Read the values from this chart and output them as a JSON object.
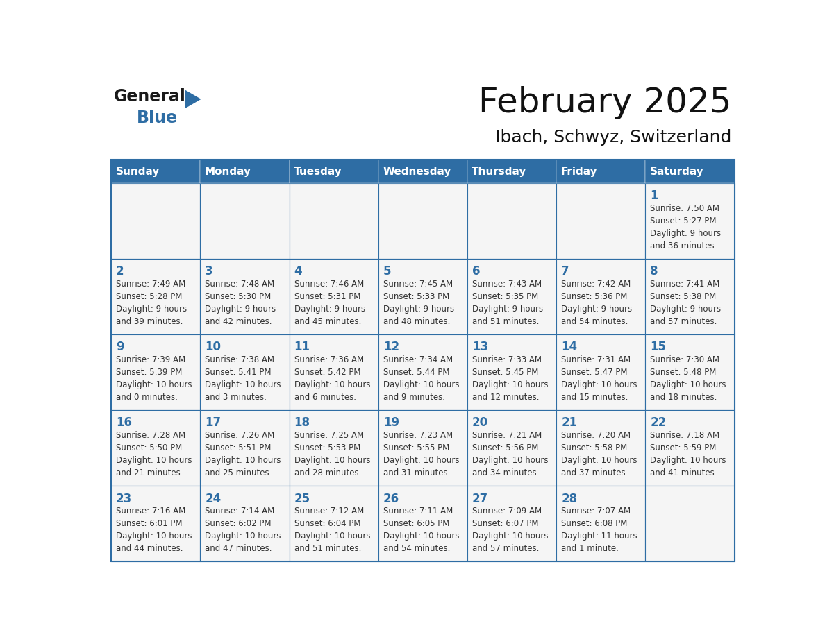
{
  "title": "February 2025",
  "subtitle": "Ibach, Schwyz, Switzerland",
  "header_bg": "#2E6DA4",
  "header_text_color": "#FFFFFF",
  "cell_bg": "#F5F5F5",
  "border_color": "#2E6DA4",
  "text_color": "#333333",
  "day_number_color": "#2E6DA4",
  "day_names": [
    "Sunday",
    "Monday",
    "Tuesday",
    "Wednesday",
    "Thursday",
    "Friday",
    "Saturday"
  ],
  "days": [
    {
      "day": 1,
      "col": 6,
      "row": 0,
      "sunrise": "7:50 AM",
      "sunset": "5:27 PM",
      "daylight_l1": "9 hours",
      "daylight_l2": "and 36 minutes."
    },
    {
      "day": 2,
      "col": 0,
      "row": 1,
      "sunrise": "7:49 AM",
      "sunset": "5:28 PM",
      "daylight_l1": "9 hours",
      "daylight_l2": "and 39 minutes."
    },
    {
      "day": 3,
      "col": 1,
      "row": 1,
      "sunrise": "7:48 AM",
      "sunset": "5:30 PM",
      "daylight_l1": "9 hours",
      "daylight_l2": "and 42 minutes."
    },
    {
      "day": 4,
      "col": 2,
      "row": 1,
      "sunrise": "7:46 AM",
      "sunset": "5:31 PM",
      "daylight_l1": "9 hours",
      "daylight_l2": "and 45 minutes."
    },
    {
      "day": 5,
      "col": 3,
      "row": 1,
      "sunrise": "7:45 AM",
      "sunset": "5:33 PM",
      "daylight_l1": "9 hours",
      "daylight_l2": "and 48 minutes."
    },
    {
      "day": 6,
      "col": 4,
      "row": 1,
      "sunrise": "7:43 AM",
      "sunset": "5:35 PM",
      "daylight_l1": "9 hours",
      "daylight_l2": "and 51 minutes."
    },
    {
      "day": 7,
      "col": 5,
      "row": 1,
      "sunrise": "7:42 AM",
      "sunset": "5:36 PM",
      "daylight_l1": "9 hours",
      "daylight_l2": "and 54 minutes."
    },
    {
      "day": 8,
      "col": 6,
      "row": 1,
      "sunrise": "7:41 AM",
      "sunset": "5:38 PM",
      "daylight_l1": "9 hours",
      "daylight_l2": "and 57 minutes."
    },
    {
      "day": 9,
      "col": 0,
      "row": 2,
      "sunrise": "7:39 AM",
      "sunset": "5:39 PM",
      "daylight_l1": "10 hours",
      "daylight_l2": "and 0 minutes."
    },
    {
      "day": 10,
      "col": 1,
      "row": 2,
      "sunrise": "7:38 AM",
      "sunset": "5:41 PM",
      "daylight_l1": "10 hours",
      "daylight_l2": "and 3 minutes."
    },
    {
      "day": 11,
      "col": 2,
      "row": 2,
      "sunrise": "7:36 AM",
      "sunset": "5:42 PM",
      "daylight_l1": "10 hours",
      "daylight_l2": "and 6 minutes."
    },
    {
      "day": 12,
      "col": 3,
      "row": 2,
      "sunrise": "7:34 AM",
      "sunset": "5:44 PM",
      "daylight_l1": "10 hours",
      "daylight_l2": "and 9 minutes."
    },
    {
      "day": 13,
      "col": 4,
      "row": 2,
      "sunrise": "7:33 AM",
      "sunset": "5:45 PM",
      "daylight_l1": "10 hours",
      "daylight_l2": "and 12 minutes."
    },
    {
      "day": 14,
      "col": 5,
      "row": 2,
      "sunrise": "7:31 AM",
      "sunset": "5:47 PM",
      "daylight_l1": "10 hours",
      "daylight_l2": "and 15 minutes."
    },
    {
      "day": 15,
      "col": 6,
      "row": 2,
      "sunrise": "7:30 AM",
      "sunset": "5:48 PM",
      "daylight_l1": "10 hours",
      "daylight_l2": "and 18 minutes."
    },
    {
      "day": 16,
      "col": 0,
      "row": 3,
      "sunrise": "7:28 AM",
      "sunset": "5:50 PM",
      "daylight_l1": "10 hours",
      "daylight_l2": "and 21 minutes."
    },
    {
      "day": 17,
      "col": 1,
      "row": 3,
      "sunrise": "7:26 AM",
      "sunset": "5:51 PM",
      "daylight_l1": "10 hours",
      "daylight_l2": "and 25 minutes."
    },
    {
      "day": 18,
      "col": 2,
      "row": 3,
      "sunrise": "7:25 AM",
      "sunset": "5:53 PM",
      "daylight_l1": "10 hours",
      "daylight_l2": "and 28 minutes."
    },
    {
      "day": 19,
      "col": 3,
      "row": 3,
      "sunrise": "7:23 AM",
      "sunset": "5:55 PM",
      "daylight_l1": "10 hours",
      "daylight_l2": "and 31 minutes."
    },
    {
      "day": 20,
      "col": 4,
      "row": 3,
      "sunrise": "7:21 AM",
      "sunset": "5:56 PM",
      "daylight_l1": "10 hours",
      "daylight_l2": "and 34 minutes."
    },
    {
      "day": 21,
      "col": 5,
      "row": 3,
      "sunrise": "7:20 AM",
      "sunset": "5:58 PM",
      "daylight_l1": "10 hours",
      "daylight_l2": "and 37 minutes."
    },
    {
      "day": 22,
      "col": 6,
      "row": 3,
      "sunrise": "7:18 AM",
      "sunset": "5:59 PM",
      "daylight_l1": "10 hours",
      "daylight_l2": "and 41 minutes."
    },
    {
      "day": 23,
      "col": 0,
      "row": 4,
      "sunrise": "7:16 AM",
      "sunset": "6:01 PM",
      "daylight_l1": "10 hours",
      "daylight_l2": "and 44 minutes."
    },
    {
      "day": 24,
      "col": 1,
      "row": 4,
      "sunrise": "7:14 AM",
      "sunset": "6:02 PM",
      "daylight_l1": "10 hours",
      "daylight_l2": "and 47 minutes."
    },
    {
      "day": 25,
      "col": 2,
      "row": 4,
      "sunrise": "7:12 AM",
      "sunset": "6:04 PM",
      "daylight_l1": "10 hours",
      "daylight_l2": "and 51 minutes."
    },
    {
      "day": 26,
      "col": 3,
      "row": 4,
      "sunrise": "7:11 AM",
      "sunset": "6:05 PM",
      "daylight_l1": "10 hours",
      "daylight_l2": "and 54 minutes."
    },
    {
      "day": 27,
      "col": 4,
      "row": 4,
      "sunrise": "7:09 AM",
      "sunset": "6:07 PM",
      "daylight_l1": "10 hours",
      "daylight_l2": "and 57 minutes."
    },
    {
      "day": 28,
      "col": 5,
      "row": 4,
      "sunrise": "7:07 AM",
      "sunset": "6:08 PM",
      "daylight_l1": "11 hours",
      "daylight_l2": "and 1 minute."
    }
  ],
  "num_rows": 5,
  "num_cols": 7,
  "logo_general_color": "#1a1a1a",
  "logo_blue_color": "#2E6DA4",
  "triangle_color": "#2E6DA4",
  "title_fontsize": 36,
  "subtitle_fontsize": 18,
  "header_fontsize": 11,
  "day_num_fontsize": 12,
  "cell_text_fontsize": 8.5
}
